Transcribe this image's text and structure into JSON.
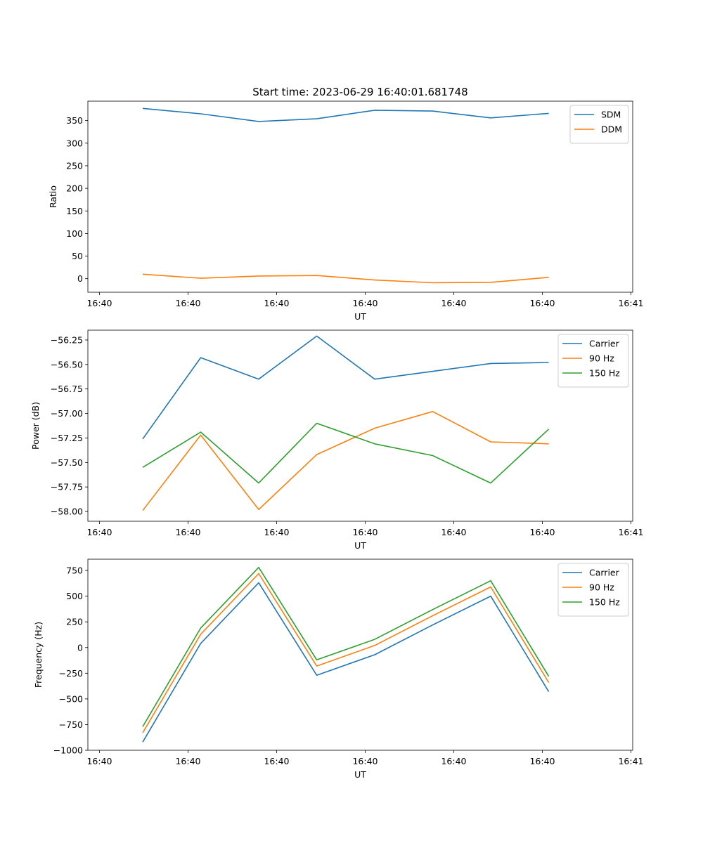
{
  "figure": {
    "title": "Start time: 2023-06-29 16:40:01.681748"
  },
  "chart_data": [
    {
      "type": "line",
      "xlabel": "UT",
      "ylabel": "Ratio",
      "x_tick_labels": [
        "16:40",
        "16:40",
        "16:40",
        "16:40",
        "16:40",
        "16:40",
        "16:40",
        "16:41"
      ],
      "ylim": [
        -30,
        393
      ],
      "y_ticks": [
        0,
        50,
        100,
        150,
        200,
        250,
        300,
        350
      ],
      "y_tick_labels": [
        "0",
        "50",
        "100",
        "150",
        "200",
        "250",
        "300",
        "350"
      ],
      "legend": "top-right",
      "series": [
        {
          "name": "SDM",
          "color": "#1f77b4",
          "values": [
            377,
            365,
            348,
            354,
            373,
            371,
            356,
            366
          ]
        },
        {
          "name": "DDM",
          "color": "#ff7f0e",
          "values": [
            10,
            1,
            6,
            7,
            -3,
            -9,
            -8,
            3
          ]
        }
      ]
    },
    {
      "type": "line",
      "xlabel": "UT",
      "ylabel": "Power (dB)",
      "x_tick_labels": [
        "16:40",
        "16:40",
        "16:40",
        "16:40",
        "16:40",
        "16:40",
        "16:40",
        "16:41"
      ],
      "ylim": [
        -58.1,
        -56.15
      ],
      "y_ticks": [
        -58.0,
        -57.75,
        -57.5,
        -57.25,
        -57.0,
        -56.75,
        -56.5,
        -56.25
      ],
      "y_tick_labels": [
        "−58.00",
        "−57.75",
        "−57.50",
        "−57.25",
        "−57.00",
        "−56.75",
        "−56.50",
        "−56.25"
      ],
      "legend": "top-right",
      "series": [
        {
          "name": "Carrier",
          "color": "#1f77b4",
          "values": [
            -57.26,
            -56.43,
            -56.65,
            -56.21,
            -56.65,
            -56.57,
            -56.49,
            -56.48
          ]
        },
        {
          "name": "90 Hz",
          "color": "#ff7f0e",
          "values": [
            -57.99,
            -57.22,
            -57.98,
            -57.42,
            -57.15,
            -56.98,
            -57.29,
            -57.31
          ]
        },
        {
          "name": "150 Hz",
          "color": "#2ca02c",
          "values": [
            -57.55,
            -57.19,
            -57.71,
            -57.1,
            -57.31,
            -57.43,
            -57.71,
            -57.16
          ]
        }
      ]
    },
    {
      "type": "line",
      "xlabel": "UT",
      "ylabel": "Frequency (Hz)",
      "x_tick_labels": [
        "16:40",
        "16:40",
        "16:40",
        "16:40",
        "16:40",
        "16:40",
        "16:40",
        "16:41"
      ],
      "ylim": [
        -1000,
        860
      ],
      "y_ticks": [
        -1000,
        -750,
        -500,
        -250,
        0,
        250,
        500,
        750
      ],
      "y_tick_labels": [
        "−1000",
        "−750",
        "−500",
        "−250",
        "0",
        "250",
        "500",
        "750"
      ],
      "legend": "top-right",
      "series": [
        {
          "name": "Carrier",
          "color": "#1f77b4",
          "values": [
            -920,
            40,
            630,
            -270,
            -70,
            220,
            500,
            -430
          ]
        },
        {
          "name": "90 Hz",
          "color": "#ff7f0e",
          "values": [
            -830,
            130,
            720,
            -180,
            20,
            310,
            590,
            -340
          ]
        },
        {
          "name": "150 Hz",
          "color": "#2ca02c",
          "values": [
            -770,
            190,
            780,
            -120,
            80,
            370,
            650,
            -280
          ]
        }
      ]
    }
  ]
}
